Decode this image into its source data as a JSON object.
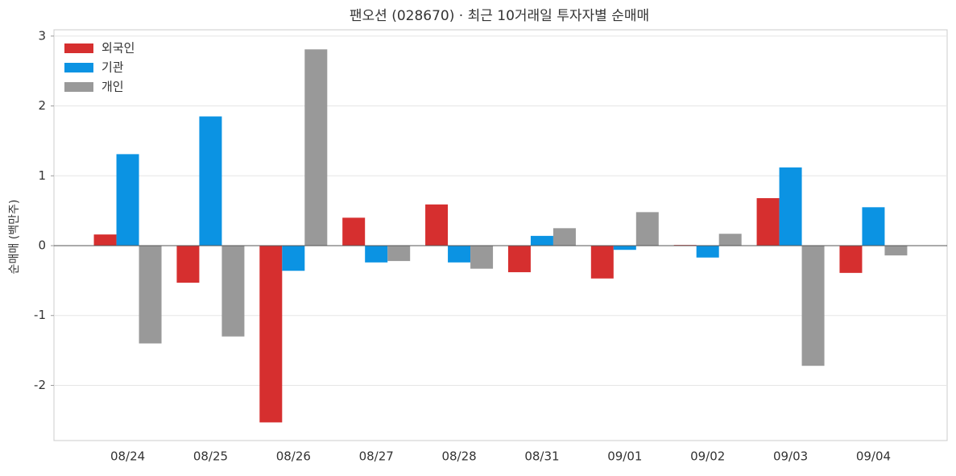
{
  "chart_data": {
    "type": "bar",
    "title": "팬오션 (028670) · 최근 10거래일 투자자별 순매매",
    "y_label": "순매매 (백만주)",
    "categories": [
      "08/24",
      "08/25",
      "08/26",
      "08/27",
      "08/28",
      "08/31",
      "09/01",
      "09/02",
      "09/03",
      "09/04"
    ],
    "series": [
      {
        "name": "외국인",
        "color": "#d62f2f",
        "values": [
          0.16,
          -0.53,
          -2.53,
          0.4,
          0.59,
          -0.38,
          -0.47,
          0.01,
          0.68,
          -0.39
        ]
      },
      {
        "name": "기관",
        "color": "#0b93e3",
        "values": [
          1.31,
          1.85,
          -0.36,
          -0.24,
          -0.24,
          0.14,
          -0.06,
          -0.17,
          1.12,
          0.55
        ]
      },
      {
        "name": "개인",
        "color": "#999999",
        "values": [
          -1.4,
          -1.3,
          2.81,
          -0.22,
          -0.33,
          0.25,
          0.48,
          0.17,
          -1.72,
          -0.14
        ]
      }
    ],
    "ylim": [
      -2.79,
      3.09
    ],
    "yticks": [
      -2,
      -1,
      0,
      1,
      2,
      3
    ],
    "grid": true,
    "legend": "upper-left"
  }
}
